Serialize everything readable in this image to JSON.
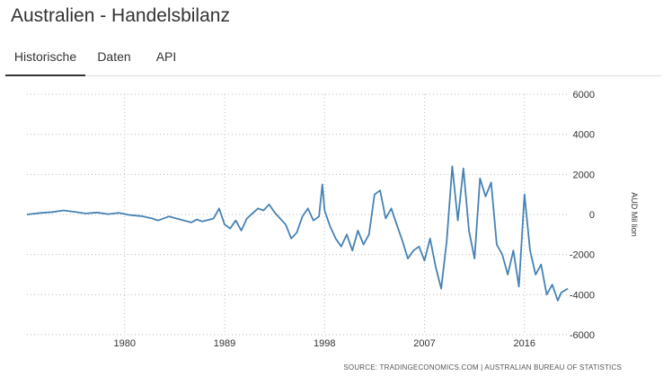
{
  "page": {
    "title": "Australien - Handelsbilanz",
    "tabs": [
      {
        "label": "Historische",
        "active": true
      },
      {
        "label": "Daten",
        "active": false
      },
      {
        "label": "API",
        "active": false
      }
    ],
    "source": "SOURCE: TRADINGECONOMICS.COM | AUSTRALIAN BUREAU OF STATISTICS"
  },
  "colors": {
    "line": "#4682b4",
    "grid": "#bbbbbb"
  },
  "chart_data": {
    "type": "line",
    "title": "",
    "xlabel": "",
    "ylabel": "AUD Mil lion",
    "y_axis_side": "right",
    "grid": "dotted",
    "xlim": [
      1971.2,
      2019.9
    ],
    "ylim": [
      -6000,
      6000
    ],
    "x_ticks": [
      1980,
      1989,
      1998,
      2007,
      2016
    ],
    "x_tick_labels": [
      "1980",
      "1989",
      "1998",
      "2007",
      "2016"
    ],
    "y_ticks": [
      6000,
      4000,
      2000,
      0,
      -2000,
      -4000,
      -6000
    ],
    "y_tick_labels": [
      "6000",
      "4000",
      "2000",
      "0",
      "-2000",
      "-4000",
      "-6000"
    ],
    "series": [
      {
        "name": "",
        "points": [
          [
            1971.2,
            0
          ],
          [
            1972.5,
            80
          ],
          [
            1973.5,
            120
          ],
          [
            1974.5,
            200
          ],
          [
            1975.5,
            130
          ],
          [
            1976.5,
            50
          ],
          [
            1977.5,
            100
          ],
          [
            1978.5,
            20
          ],
          [
            1979.5,
            80
          ],
          [
            1980.5,
            -30
          ],
          [
            1981.5,
            -80
          ],
          [
            1982.5,
            -200
          ],
          [
            1983.0,
            -300
          ],
          [
            1984.0,
            -100
          ],
          [
            1985.0,
            -250
          ],
          [
            1986.0,
            -400
          ],
          [
            1986.5,
            -250
          ],
          [
            1987.0,
            -350
          ],
          [
            1988.0,
            -200
          ],
          [
            1988.5,
            300
          ],
          [
            1989.0,
            -500
          ],
          [
            1989.5,
            -700
          ],
          [
            1990.0,
            -300
          ],
          [
            1990.5,
            -800
          ],
          [
            1991.0,
            -200
          ],
          [
            1991.5,
            50
          ],
          [
            1992.0,
            300
          ],
          [
            1992.5,
            200
          ],
          [
            1993.0,
            500
          ],
          [
            1993.5,
            100
          ],
          [
            1994.0,
            -200
          ],
          [
            1994.5,
            -500
          ],
          [
            1995.0,
            -1200
          ],
          [
            1995.5,
            -900
          ],
          [
            1996.0,
            -100
          ],
          [
            1996.5,
            300
          ],
          [
            1997.0,
            -300
          ],
          [
            1997.5,
            -100
          ],
          [
            1997.8,
            1500
          ],
          [
            1998.0,
            200
          ],
          [
            1998.5,
            -600
          ],
          [
            1999.0,
            -1200
          ],
          [
            1999.5,
            -1600
          ],
          [
            2000.0,
            -1000
          ],
          [
            2000.5,
            -1800
          ],
          [
            2001.0,
            -800
          ],
          [
            2001.5,
            -1500
          ],
          [
            2002.0,
            -1000
          ],
          [
            2002.5,
            1000
          ],
          [
            2003.0,
            1200
          ],
          [
            2003.5,
            -200
          ],
          [
            2004.0,
            300
          ],
          [
            2004.5,
            -500
          ],
          [
            2005.0,
            -1300
          ],
          [
            2005.5,
            -2200
          ],
          [
            2006.0,
            -1800
          ],
          [
            2006.5,
            -1600
          ],
          [
            2007.0,
            -2300
          ],
          [
            2007.5,
            -1200
          ],
          [
            2008.0,
            -2600
          ],
          [
            2008.5,
            -3700
          ],
          [
            2009.0,
            -1300
          ],
          [
            2009.5,
            2400
          ],
          [
            2010.0,
            -300
          ],
          [
            2010.5,
            2300
          ],
          [
            2011.0,
            -800
          ],
          [
            2011.5,
            -2200
          ],
          [
            2012.0,
            1800
          ],
          [
            2012.5,
            900
          ],
          [
            2013.0,
            1600
          ],
          [
            2013.5,
            -1500
          ],
          [
            2014.0,
            -2000
          ],
          [
            2014.5,
            -3000
          ],
          [
            2015.0,
            -1800
          ],
          [
            2015.5,
            -3600
          ],
          [
            2016.0,
            1000
          ],
          [
            2016.5,
            -1800
          ],
          [
            2017.0,
            -3000
          ],
          [
            2017.5,
            -2500
          ],
          [
            2018.0,
            -4000
          ],
          [
            2018.5,
            -3500
          ],
          [
            2019.0,
            -4300
          ],
          [
            2019.3,
            -3900
          ],
          [
            2019.6,
            -3800
          ],
          [
            2019.9,
            -3700
          ]
        ]
      }
    ]
  }
}
